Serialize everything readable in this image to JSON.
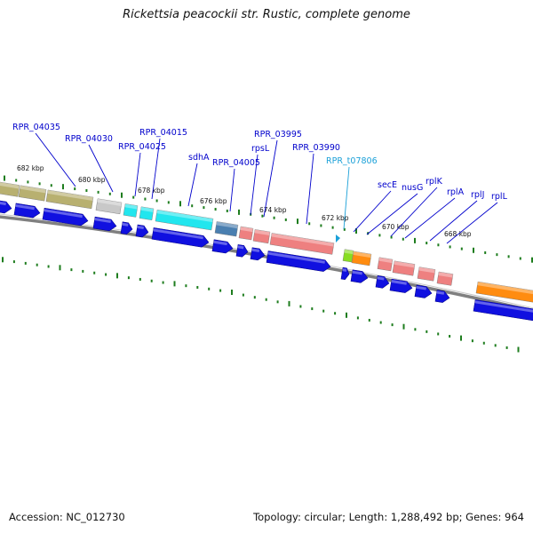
{
  "title": "Rickettsia peacockii str. Rustic, complete genome",
  "footer": {
    "accession": "Accession: NC_012730",
    "summary": "Topology: circular; Length: 1,288,492 bp; Genes: 964"
  },
  "colors": {
    "label_blue": "#0000cc",
    "label_trna": "#1aa0d8",
    "cds_arrow": "#1010e0",
    "backbone": "#808080",
    "tick_green": "#1e7d1e"
  },
  "tick_labels": [
    "682 kbp",
    "680 kbp",
    "678 kbp",
    "676 kbp",
    "674 kbp",
    "672 kbp",
    "670 kbp",
    "668 kbp"
  ],
  "gene_labels": [
    {
      "text": "RPR_04035",
      "type": "cds"
    },
    {
      "text": "RPR_04030",
      "type": "cds"
    },
    {
      "text": "RPR_04015",
      "type": "cds"
    },
    {
      "text": "RPR_04025",
      "type": "cds"
    },
    {
      "text": "sdhA",
      "type": "cds"
    },
    {
      "text": "RPR_04005",
      "type": "cds"
    },
    {
      "text": "RPR_03995",
      "type": "cds"
    },
    {
      "text": "rpsL",
      "type": "cds"
    },
    {
      "text": "RPR_03990",
      "type": "cds"
    },
    {
      "text": "RPR_t07806",
      "type": "trna"
    },
    {
      "text": "secE",
      "type": "cds"
    },
    {
      "text": "nusG",
      "type": "cds"
    },
    {
      "text": "rplK",
      "type": "cds"
    },
    {
      "text": "rplA",
      "type": "cds"
    },
    {
      "text": "rplJ",
      "type": "cds"
    },
    {
      "text": "rplL",
      "type": "cds"
    }
  ]
}
